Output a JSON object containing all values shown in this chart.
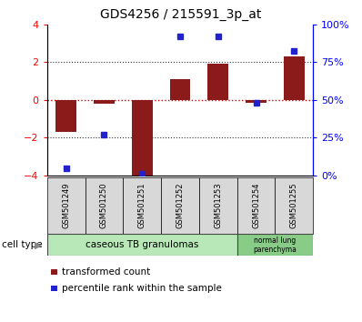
{
  "title": "GDS4256 / 215591_3p_at",
  "samples": [
    "GSM501249",
    "GSM501250",
    "GSM501251",
    "GSM501252",
    "GSM501253",
    "GSM501254",
    "GSM501255"
  ],
  "transformed_count": [
    -1.7,
    -0.2,
    -4.1,
    1.1,
    1.9,
    -0.15,
    2.3
  ],
  "percentile_rank": [
    5,
    27,
    1,
    92,
    92,
    48,
    82
  ],
  "ylim_left": [
    -4,
    4
  ],
  "ylim_right": [
    0,
    100
  ],
  "bar_color": "#8b1a1a",
  "dot_color": "#2222cc",
  "cell_types": [
    {
      "label": "caseous TB granulomas",
      "start": 0,
      "end": 4,
      "color": "#b8e8b8"
    },
    {
      "label": "normal lung\nparenchyma",
      "start": 5,
      "end": 6,
      "color": "#88cc88"
    }
  ],
  "left_yticks": [
    -4,
    -2,
    0,
    2,
    4
  ],
  "right_yticks": [
    0,
    25,
    50,
    75,
    100
  ],
  "right_yticklabels": [
    "0%",
    "25%",
    "50%",
    "75%",
    "100%"
  ],
  "hline_color_red": "#cc0000",
  "dotted_color": "#333333",
  "legend_red_label": "transformed count",
  "legend_blue_label": "percentile rank within the sample",
  "cell_type_label": "cell type",
  "sample_bg_color": "#d8d8d8"
}
